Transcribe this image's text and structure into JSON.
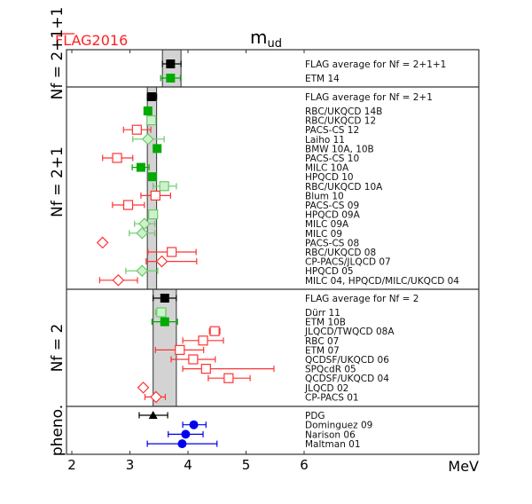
{
  "chart_data": {
    "type": "scatter",
    "title": "m_ud",
    "title_main": "m",
    "title_sub": "ud",
    "logo": "FLAG2016",
    "xlabel": "MeV",
    "xlim": [
      1.91,
      9.1
    ],
    "xticks": [
      "2",
      "3",
      "4",
      "5",
      "6"
    ],
    "xtick_values": [
      2,
      3,
      4,
      5,
      6
    ],
    "panels": [
      {
        "name": "N_f = 2+1+1",
        "label": "Nf = 2+1+1",
        "band": [
          3.56,
          3.88
        ],
        "rows": [
          {
            "label": "FLAG average for Nf = 2+1+1",
            "value": 3.7,
            "lo": 3.56,
            "hi": 3.88,
            "style": "avg"
          },
          {
            "label": "ETM 14",
            "value": 3.7,
            "lo": 3.53,
            "hi": 3.87,
            "style": "green-filled"
          }
        ]
      },
      {
        "name": "N_f = 2+1",
        "label": "Nf = 2+1",
        "band": [
          3.3,
          3.46
        ],
        "rows": [
          {
            "label": "FLAG average for Nf = 2+1",
            "value": 3.373,
            "lo": 3.3,
            "hi": 3.46,
            "style": "avg"
          },
          {
            "label": "RBC/UKQCD 14B",
            "value": 3.31,
            "lo": 3.27,
            "hi": 3.35,
            "style": "green-filled"
          },
          {
            "label": "RBC/UKQCD 12",
            "value": 3.37,
            "lo": 3.32,
            "hi": 3.42,
            "style": "green-open"
          },
          {
            "label": "PACS-CS 12",
            "value": 3.12,
            "lo": 2.89,
            "hi": 3.36,
            "style": "red-square"
          },
          {
            "label": "Laiho 11",
            "value": 3.31,
            "lo": 3.05,
            "hi": 3.59,
            "style": "green-diamond"
          },
          {
            "label": "BMW 10A, 10B",
            "value": 3.469,
            "lo": 3.42,
            "hi": 3.52,
            "style": "green-filled"
          },
          {
            "label": "PACS-CS 10",
            "value": 2.78,
            "lo": 2.53,
            "hi": 3.05,
            "style": "red-square"
          },
          {
            "label": "MILC 10A",
            "value": 3.19,
            "lo": 3.04,
            "hi": 3.33,
            "style": "green-filled"
          },
          {
            "label": "HPQCD 10",
            "value": 3.39,
            "lo": 3.34,
            "hi": 3.44,
            "style": "green-filled"
          },
          {
            "label": "RBC/UKQCD 10A",
            "value": 3.59,
            "lo": 3.4,
            "hi": 3.8,
            "style": "green-open"
          },
          {
            "label": "Blum 10",
            "value": 3.44,
            "lo": 3.19,
            "hi": 3.7,
            "style": "red-square"
          },
          {
            "label": "PACS-CS 09",
            "value": 2.97,
            "lo": 2.7,
            "hi": 3.25,
            "style": "red-square"
          },
          {
            "label": "HPQCD 09A",
            "value": 3.4,
            "lo": 3.35,
            "hi": 3.45,
            "style": "green-open"
          },
          {
            "label": "MILC 09A",
            "value": 3.25,
            "lo": 3.08,
            "hi": 3.43,
            "style": "green-diamond"
          },
          {
            "label": "MILC 09",
            "value": 3.21,
            "lo": 2.99,
            "hi": 3.43,
            "style": "green-diamond"
          },
          {
            "label": "PACS-CS 08",
            "value": 2.53,
            "lo": 2.53,
            "hi": 2.53,
            "style": "red-diamond"
          },
          {
            "label": "RBC/UKQCD 08",
            "value": 3.72,
            "lo": 3.31,
            "hi": 4.14,
            "style": "red-square"
          },
          {
            "label": "CP-PACS/JLQCD 07",
            "value": 3.55,
            "lo": 3.28,
            "hi": 4.15,
            "style": "red-diamond"
          },
          {
            "label": "HPQCD 05",
            "value": 3.21,
            "lo": 2.93,
            "hi": 3.48,
            "style": "green-diamond"
          },
          {
            "label": "MILC 04, HPQCD/MILC/UKQCD 04",
            "value": 2.8,
            "lo": 2.48,
            "hi": 3.13,
            "style": "red-diamond"
          }
        ]
      },
      {
        "name": "N_f = 2",
        "label": "Nf = 2",
        "band": [
          3.4,
          3.8
        ],
        "rows": [
          {
            "label": "FLAG average for Nf = 2",
            "value": 3.6,
            "lo": 3.4,
            "hi": 3.8,
            "style": "avg"
          },
          {
            "label": "Dürr 11",
            "value": 3.54,
            "lo": 3.44,
            "hi": 3.62,
            "style": "green-open"
          },
          {
            "label": "ETM 10B",
            "value": 3.6,
            "lo": 3.38,
            "hi": 3.82,
            "style": "green-filled"
          },
          {
            "label": "JLQCD/TWQCD 08A",
            "value": 4.46,
            "lo": 4.37,
            "hi": 4.55,
            "style": "red-square"
          },
          {
            "label": "RBC 07",
            "value": 4.26,
            "lo": 3.91,
            "hi": 4.61,
            "style": "red-square"
          },
          {
            "label": "ETM 07",
            "value": 3.86,
            "lo": 3.44,
            "hi": 4.27,
            "style": "red-square"
          },
          {
            "label": "QCDSF/UKQCD 06",
            "value": 4.09,
            "lo": 3.71,
            "hi": 4.47,
            "style": "red-square"
          },
          {
            "label": "SPQcdR 05",
            "value": 4.31,
            "lo": 3.91,
            "hi": 5.48,
            "style": "red-square"
          },
          {
            "label": "QCDSF/UKQCD 04",
            "value": 4.7,
            "lo": 4.35,
            "hi": 5.07,
            "style": "red-square"
          },
          {
            "label": "JLQCD 02",
            "value": 3.23,
            "lo": 3.23,
            "hi": 3.23,
            "style": "red-diamond"
          },
          {
            "label": "CP-PACS 01",
            "value": 3.45,
            "lo": 3.26,
            "hi": 3.61,
            "style": "red-diamond"
          }
        ]
      },
      {
        "name": "pheno.",
        "label": "pheno.",
        "band": null,
        "rows": [
          {
            "label": "PDG",
            "value": 3.4,
            "lo": 3.16,
            "hi": 3.65,
            "style": "triangle"
          },
          {
            "label": "Dominguez 09",
            "value": 4.1,
            "lo": 3.91,
            "hi": 4.31,
            "style": "blue-circle"
          },
          {
            "label": "Narison 06",
            "value": 3.96,
            "lo": 3.66,
            "hi": 4.26,
            "style": "blue-circle"
          },
          {
            "label": "Maltman 01",
            "value": 3.9,
            "lo": 3.3,
            "hi": 4.5,
            "style": "blue-circle"
          }
        ]
      }
    ],
    "colors": {
      "red": "#ff3333",
      "green": "#00aa00",
      "lightgreen": "#66cc66",
      "blue": "#0000ee",
      "band": "#d3d3d3"
    }
  }
}
